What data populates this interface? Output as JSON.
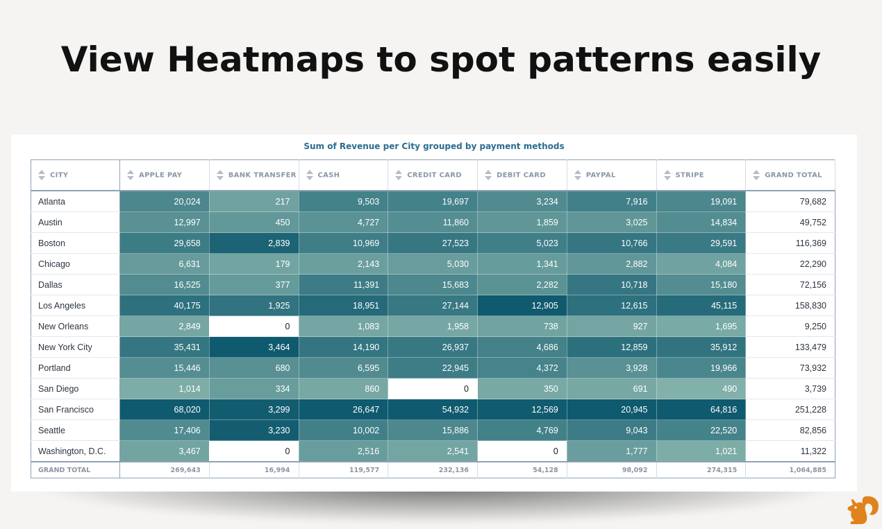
{
  "headline": "View Heatmaps to spot patterns easily",
  "table": {
    "title": "Sum of Revenue per City grouped by payment methods",
    "columns": [
      "CITY",
      "APPLE PAY",
      "BANK TRANSFER",
      "CASH",
      "CREDIT CARD",
      "DEBIT CARD",
      "PAYPAL",
      "STRIPE",
      "GRAND TOTAL"
    ],
    "rows": [
      {
        "city": "Atlanta",
        "values": [
          "20,024",
          "217",
          "9,503",
          "19,697",
          "3,234",
          "7,916",
          "19,091"
        ],
        "total": "79,682"
      },
      {
        "city": "Austin",
        "values": [
          "12,997",
          "450",
          "4,727",
          "11,860",
          "1,859",
          "3,025",
          "14,834"
        ],
        "total": "49,752"
      },
      {
        "city": "Boston",
        "values": [
          "29,658",
          "2,839",
          "10,969",
          "27,523",
          "5,023",
          "10,766",
          "29,591"
        ],
        "total": "116,369"
      },
      {
        "city": "Chicago",
        "values": [
          "6,631",
          "179",
          "2,143",
          "5,030",
          "1,341",
          "2,882",
          "4,084"
        ],
        "total": "22,290"
      },
      {
        "city": "Dallas",
        "values": [
          "16,525",
          "377",
          "11,391",
          "15,683",
          "2,282",
          "10,718",
          "15,180"
        ],
        "total": "72,156"
      },
      {
        "city": "Los Angeles",
        "values": [
          "40,175",
          "1,925",
          "18,951",
          "27,144",
          "12,905",
          "12,615",
          "45,115"
        ],
        "total": "158,830"
      },
      {
        "city": "New Orleans",
        "values": [
          "2,849",
          "0",
          "1,083",
          "1,958",
          "738",
          "927",
          "1,695"
        ],
        "total": "9,250"
      },
      {
        "city": "New York City",
        "values": [
          "35,431",
          "3,464",
          "14,190",
          "26,937",
          "4,686",
          "12,859",
          "35,912"
        ],
        "total": "133,479"
      },
      {
        "city": "Portland",
        "values": [
          "15,446",
          "680",
          "6,595",
          "22,945",
          "4,372",
          "3,928",
          "19,966"
        ],
        "total": "73,932"
      },
      {
        "city": "San Diego",
        "values": [
          "1,014",
          "334",
          "860",
          "0",
          "350",
          "691",
          "490"
        ],
        "total": "3,739"
      },
      {
        "city": "San Francisco",
        "values": [
          "68,020",
          "3,299",
          "26,647",
          "54,932",
          "12,569",
          "20,945",
          "64,816"
        ],
        "total": "251,228"
      },
      {
        "city": "Seattle",
        "values": [
          "17,406",
          "3,230",
          "10,002",
          "15,886",
          "4,769",
          "9,043",
          "22,520"
        ],
        "total": "82,856"
      },
      {
        "city": "Washington, D.C.",
        "values": [
          "3,467",
          "0",
          "2,516",
          "2,541",
          "0",
          "1,777",
          "1,021"
        ],
        "total": "11,322"
      }
    ],
    "footer": {
      "label": "GRAND TOTAL",
      "values": [
        "269,643",
        "16,994",
        "119,577",
        "232,136",
        "54,128",
        "98,092",
        "274,315"
      ],
      "total": "1,064,885"
    }
  },
  "colors": {
    "heat_low": "#8ab6ae",
    "heat_high": "#0f5a6e",
    "title": "#2a6d90",
    "header_text": "#8b96a5"
  },
  "icons": {
    "sort": "sort-arrows-icon",
    "logo": "squirrel-logo-icon"
  }
}
